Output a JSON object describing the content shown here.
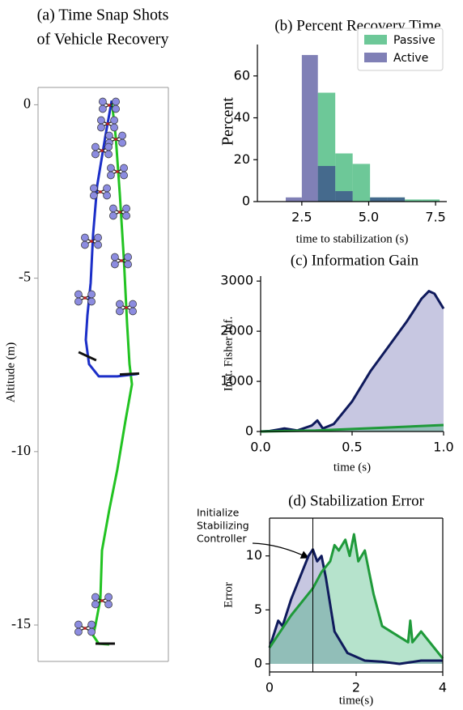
{
  "chart_data": [
    {
      "type": "line",
      "title": [
        "(a) Time Snap Shots",
        "of Vehicle Recovery"
      ],
      "y_label": "Altitude (m)",
      "xlim": [
        0,
        16.1
      ],
      "ylim": [
        -16.05,
        0.5
      ],
      "yticks": [
        0,
        -5,
        -10,
        -15
      ],
      "series": [
        {
          "color": "#22c322",
          "x": [
            9.1,
            9.6,
            10.1,
            10.6,
            11.0,
            11.3,
            11.6,
            10.8,
            9.8,
            8.8,
            7.9,
            7.7,
            7.1,
            6.8,
            7.5,
            8.8
          ],
          "values": [
            0.12,
            -0.93,
            -2.57,
            -4.44,
            -6.31,
            -7.48,
            -8.06,
            -9.11,
            -10.51,
            -11.68,
            -12.85,
            -14.25,
            -15.0,
            -15.3,
            -15.54,
            -15.56
          ]
        },
        {
          "color": "#1c2fc8",
          "x": [
            9.1,
            8.3,
            7.3,
            6.8,
            6.5,
            6.1,
            5.9,
            6.3,
            7.5,
            9.8,
            12.3
          ],
          "values": [
            0.12,
            -0.93,
            -2.34,
            -3.74,
            -5.14,
            -6.07,
            -6.78,
            -7.48,
            -7.83,
            -7.83,
            -7.76
          ]
        }
      ]
    },
    {
      "type": "histogram",
      "title": "(b) Percent Recovery Time",
      "x_label": "time to stabilization (s)",
      "y_label": "Percent",
      "xlim": [
        0.84,
        7.92
      ],
      "ylim": [
        0,
        75
      ],
      "xticks": [
        2.5,
        {
          "value": 5,
          "label": "5.0"
        },
        7.5
      ],
      "yticks": [
        0,
        20,
        40,
        60
      ],
      "legend": "upper right",
      "series": [
        {
          "name": "Passive",
          "color": "#2fb06c",
          "bins": [
            3.1,
            3.75,
            4.4,
            5.05,
            5.7,
            6.35,
            7.0,
            7.65
          ],
          "values": [
            52,
            23,
            18,
            2,
            2,
            1,
            1
          ]
        },
        {
          "name": "Active",
          "color": "#2c2c86",
          "bins": [
            1.9,
            2.5,
            3.1,
            3.75,
            4.4,
            5.05,
            5.7,
            6.35
          ],
          "values": [
            2,
            70,
            17,
            5,
            0,
            2,
            2
          ]
        }
      ]
    },
    {
      "type": "area",
      "title": "(c) Information Gain",
      "x_label": "time (s)",
      "y_label": "Inst. Fisher Inf.",
      "xlim": [
        0,
        1
      ],
      "ylim": [
        0,
        3100
      ],
      "xticks": [
        {
          "value": 0,
          "label": "0.0"
        },
        0.5,
        {
          "value": 1,
          "label": "1.0"
        }
      ],
      "yticks": [
        0,
        1000,
        2000,
        3000
      ],
      "series": [
        {
          "color": "#0f1a5c",
          "fill": "#5f5faa",
          "x": [
            0,
            0.05,
            0.1,
            0.13,
            0.2,
            0.28,
            0.31,
            0.34,
            0.4,
            0.5,
            0.6,
            0.7,
            0.8,
            0.88,
            0.92,
            0.95,
            1.0
          ],
          "values": [
            0,
            10,
            40,
            60,
            20,
            120,
            220,
            60,
            150,
            600,
            1200,
            1700,
            2200,
            2650,
            2800,
            2750,
            2450
          ]
        },
        {
          "color": "#1f9a3a",
          "fill": "#2fb06c",
          "x": [
            0,
            0.3,
            0.5,
            0.7,
            1.0
          ],
          "values": [
            0,
            20,
            50,
            80,
            130
          ]
        }
      ]
    },
    {
      "type": "area",
      "title": "(d) Stabilization Error",
      "x_label": "time(s)",
      "y_label": "Error",
      "annotation": [
        "Initialize",
        "Stabilizing",
        "Controller"
      ],
      "vline_x": 1,
      "xlim": [
        0,
        4
      ],
      "ylim": [
        -0.75,
        13.5
      ],
      "xticks": [
        0,
        2,
        4
      ],
      "yticks": [
        0,
        5,
        10
      ],
      "series": [
        {
          "color": "#0f1a5c",
          "fill": "#5f5faa",
          "x": [
            0,
            0.2,
            0.3,
            0.5,
            0.7,
            0.9,
            1.0,
            1.1,
            1.2,
            1.3,
            1.5,
            1.8,
            2.2,
            2.6,
            3.0,
            3.5,
            4.0
          ],
          "values": [
            1.5,
            4,
            3.5,
            6,
            8,
            10,
            10.6,
            9.5,
            10,
            8,
            3,
            1,
            0.3,
            0.2,
            0,
            0.3,
            0.3
          ]
        },
        {
          "color": "#1f9a3a",
          "fill": "#2fb06c",
          "x": [
            0,
            0.5,
            1.0,
            1.2,
            1.4,
            1.5,
            1.6,
            1.75,
            1.85,
            1.95,
            2.05,
            2.2,
            2.4,
            2.6,
            3.0,
            3.2,
            3.25,
            3.3,
            3.5,
            3.8,
            4.0
          ],
          "values": [
            1.5,
            4.5,
            7,
            8.5,
            9.5,
            11,
            10.5,
            11.5,
            10,
            12,
            9.5,
            10.5,
            6.5,
            3.5,
            2.5,
            2,
            4,
            2,
            3,
            1.5,
            0.5
          ]
        }
      ]
    }
  ]
}
